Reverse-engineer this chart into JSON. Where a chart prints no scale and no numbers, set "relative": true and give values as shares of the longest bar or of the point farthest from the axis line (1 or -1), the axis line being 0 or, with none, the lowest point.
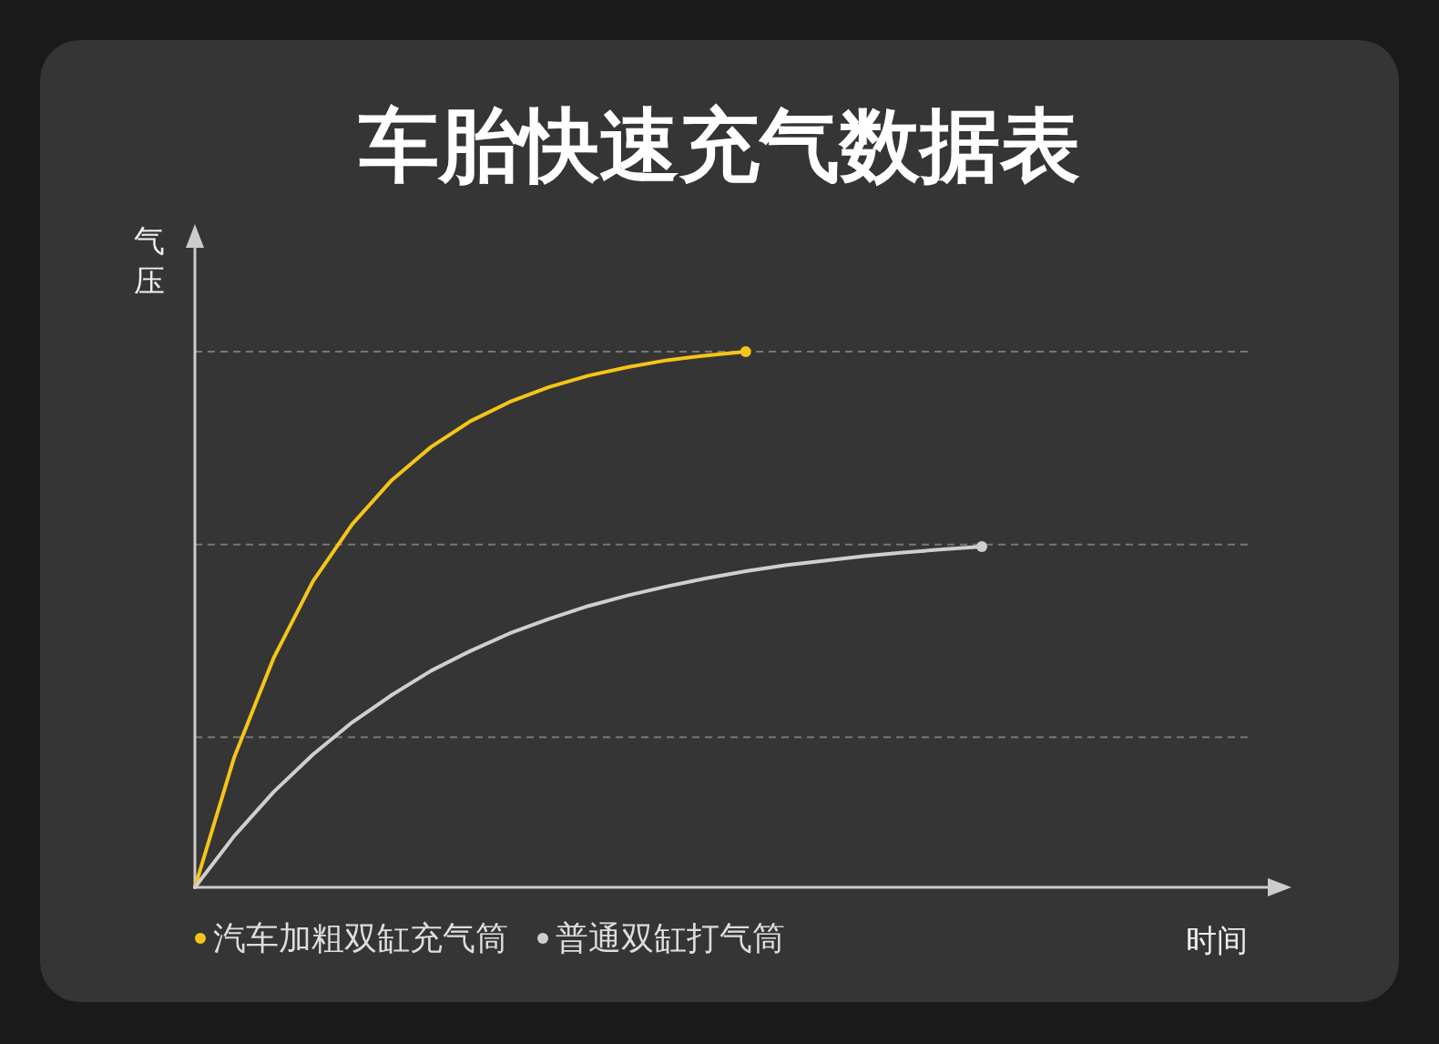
{
  "chart_data": {
    "type": "line",
    "title": "车胎快速充气数据表",
    "ylabel": "气压",
    "annotations": [
      {
        "text": "时间"
      }
    ],
    "relative": true,
    "ref_lines": [
      {
        "axis": "y",
        "value": 1.0,
        "color": "#777777",
        "line_style": "dashed"
      },
      {
        "axis": "y",
        "value": 0.64,
        "color": "#777777",
        "line_style": "dashed"
      },
      {
        "axis": "y",
        "value": 0.28,
        "color": "#777777",
        "line_style": "dashed"
      }
    ],
    "legend": "bottom left",
    "marker": "none",
    "line_style": "solid",
    "categories": [
      null,
      null,
      null,
      null,
      null,
      null,
      null,
      null,
      null,
      null,
      null,
      null,
      null,
      null,
      null,
      null,
      null,
      null,
      null,
      null,
      null
    ],
    "series": [
      {
        "name": "汽车加粗双缸充气筒",
        "color": "#f5c518",
        "values": [
          0,
          0.243,
          0.428,
          0.571,
          0.678,
          0.76,
          0.822,
          0.87,
          0.906,
          0.934,
          0.955,
          0.971,
          0.984,
          0.993,
          1.0,
          null,
          null,
          null,
          null,
          null,
          null
        ]
      },
      {
        "name": "普通双缸打气筒",
        "color": "#cfcfcf",
        "values": [
          0,
          0.096,
          0.178,
          0.248,
          0.308,
          0.359,
          0.404,
          0.441,
          0.474,
          0.501,
          0.525,
          0.545,
          0.562,
          0.577,
          0.59,
          0.601,
          0.61,
          0.618,
          0.625,
          0.631,
          0.636
        ]
      }
    ]
  }
}
